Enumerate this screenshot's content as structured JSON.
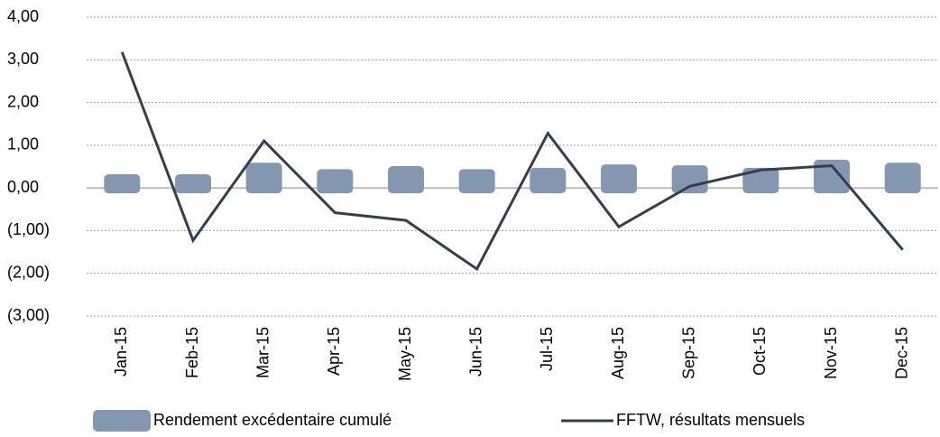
{
  "chart_data": {
    "type": "bar_line",
    "categories": [
      "Jan-15",
      "Feb-15",
      "Mar-15",
      "Apr-15",
      "May-15",
      "Jun-15",
      "Jul-15",
      "Aug-15",
      "Sep-15",
      "Oct-15",
      "Nov-15",
      "Dec-15"
    ],
    "series": [
      {
        "name": "Rendement excédentaire cumulé",
        "type": "bar",
        "color": "#8497b0",
        "values": [
          0.32,
          0.32,
          0.59,
          0.44,
          0.51,
          0.44,
          0.47,
          0.55,
          0.53,
          0.47,
          0.66,
          0.59
        ]
      },
      {
        "name": "FFTW, résultats mensuels",
        "type": "line",
        "color": "#333f50",
        "values": [
          3.18,
          -1.23,
          1.1,
          -0.58,
          -0.76,
          -1.9,
          1.28,
          -0.91,
          0.04,
          0.42,
          0.52,
          -1.45
        ]
      }
    ],
    "ylim": [
      -3,
      4
    ],
    "yticks": [
      {
        "value": 4,
        "label": "4,00"
      },
      {
        "value": 3,
        "label": "3,00"
      },
      {
        "value": 2,
        "label": "2,00"
      },
      {
        "value": 1,
        "label": "1,00"
      },
      {
        "value": 0,
        "label": "0,00"
      },
      {
        "value": -1,
        "label": "(1,00)"
      },
      {
        "value": -2,
        "label": "(2,00)"
      },
      {
        "value": -3,
        "label": "(3,00)"
      }
    ],
    "negative_tick_color": "#e00000",
    "grid": true,
    "legend": "bottom"
  }
}
